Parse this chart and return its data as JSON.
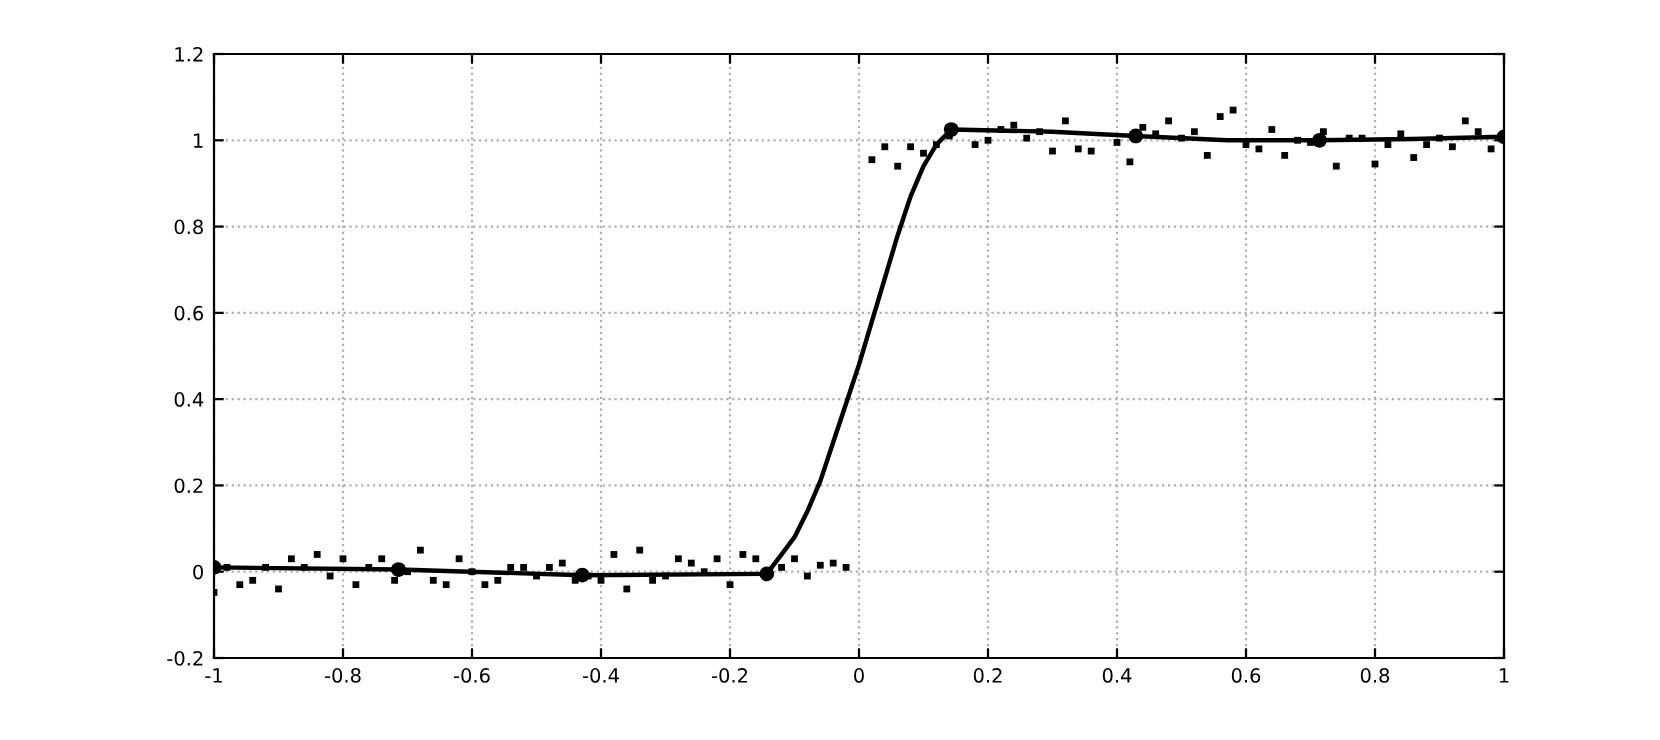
{
  "chart_data": {
    "type": "scatter",
    "xlim": [
      -1,
      1
    ],
    "ylim": [
      -0.2,
      1.2
    ],
    "xticks": [
      -1,
      -0.8,
      -0.6,
      -0.4,
      -0.2,
      0,
      0.2,
      0.4,
      0.6,
      0.8,
      1
    ],
    "yticks": [
      -0.2,
      0,
      0.2,
      0.4,
      0.6,
      0.8,
      1,
      1.2
    ],
    "grid": true,
    "legend": false,
    "series": [
      {
        "marker": "square",
        "color": "#000000",
        "x": [
          -1,
          -0.98,
          -0.96,
          -0.94,
          -0.92,
          -0.9,
          -0.88,
          -0.86,
          -0.84,
          -0.82,
          -0.8,
          -0.78,
          -0.76,
          -0.74,
          -0.72,
          -0.7,
          -0.68,
          -0.66,
          -0.64,
          -0.62,
          -0.6,
          -0.58,
          -0.56,
          -0.54,
          -0.52,
          -0.5,
          -0.48,
          -0.46,
          -0.44,
          -0.42,
          -0.4,
          -0.38,
          -0.36,
          -0.34,
          -0.32,
          -0.3,
          -0.28,
          -0.26,
          -0.24,
          -0.22,
          -0.2,
          -0.18,
          -0.16,
          -0.12,
          -0.1,
          -0.08,
          -0.06,
          -0.04,
          -0.02,
          0.02,
          0.04,
          0.06,
          0.08,
          0.1,
          0.12,
          0.14,
          0.18,
          0.2,
          0.22,
          0.24,
          0.26,
          0.28,
          0.3,
          0.32,
          0.34,
          0.36,
          0.4,
          0.42,
          0.44,
          0.46,
          0.48,
          0.5,
          0.52,
          0.54,
          0.56,
          0.58,
          0.6,
          0.62,
          0.64,
          0.66,
          0.68,
          0.7,
          0.72,
          0.74,
          0.76,
          0.78,
          0.8,
          0.82,
          0.84,
          0.86,
          0.88,
          0.9,
          0.92,
          0.94,
          0.96,
          0.98
        ],
        "values": [
          -0.048,
          0.01,
          -0.03,
          -0.02,
          0.01,
          -0.04,
          0.03,
          0.01,
          0.04,
          -0.01,
          0.03,
          -0.03,
          0.01,
          0.03,
          -0.02,
          0.0,
          0.05,
          -0.02,
          -0.03,
          0.03,
          0.0,
          -0.03,
          -0.02,
          0.01,
          0.01,
          -0.01,
          0.01,
          0.02,
          -0.02,
          -0.01,
          -0.02,
          0.04,
          -0.04,
          0.05,
          -0.02,
          -0.01,
          0.03,
          0.02,
          0.0,
          0.03,
          -0.03,
          0.04,
          0.03,
          0.01,
          0.03,
          -0.01,
          0.015,
          0.02,
          0.01,
          0.955,
          0.985,
          0.94,
          0.985,
          0.97,
          0.99,
          1.01,
          0.99,
          1.0,
          1.025,
          1.035,
          1.005,
          1.02,
          0.975,
          1.045,
          0.98,
          0.975,
          0.995,
          0.95,
          1.03,
          1.015,
          1.045,
          1.005,
          1.02,
          0.965,
          1.055,
          1.07,
          0.99,
          0.98,
          1.025,
          0.965,
          1.0,
          0.995,
          1.02,
          0.94,
          1.005,
          1.005,
          0.945,
          0.99,
          1.015,
          0.96,
          0.99,
          1.005,
          0.985,
          1.045,
          1.02,
          0.98
        ]
      },
      {
        "type": "line",
        "marker": "none",
        "line_style": "solid",
        "color": "#000000",
        "x": [
          -1,
          -0.714,
          -0.429,
          -0.143,
          -0.12,
          -0.1,
          -0.08,
          -0.06,
          -0.04,
          -0.02,
          0,
          0.02,
          0.04,
          0.06,
          0.08,
          0.1,
          0.12,
          0.143,
          0.3,
          0.429,
          0.571,
          0.714,
          0.857,
          1
        ],
        "values": [
          0.01,
          0.005,
          -0.008,
          -0.005,
          0.04,
          0.08,
          0.14,
          0.21,
          0.3,
          0.39,
          0.48,
          0.58,
          0.68,
          0.78,
          0.87,
          0.94,
          0.99,
          1.025,
          1.02,
          1.01,
          1.0,
          1.0,
          1.003,
          1.008
        ]
      },
      {
        "marker": "circle",
        "color": "#000000",
        "x": [
          -1,
          -0.714,
          -0.429,
          -0.143,
          0.143,
          0.429,
          0.714,
          1
        ],
        "values": [
          0.01,
          0.005,
          -0.008,
          -0.005,
          1.025,
          1.01,
          1.0,
          1.008
        ]
      }
    ]
  }
}
